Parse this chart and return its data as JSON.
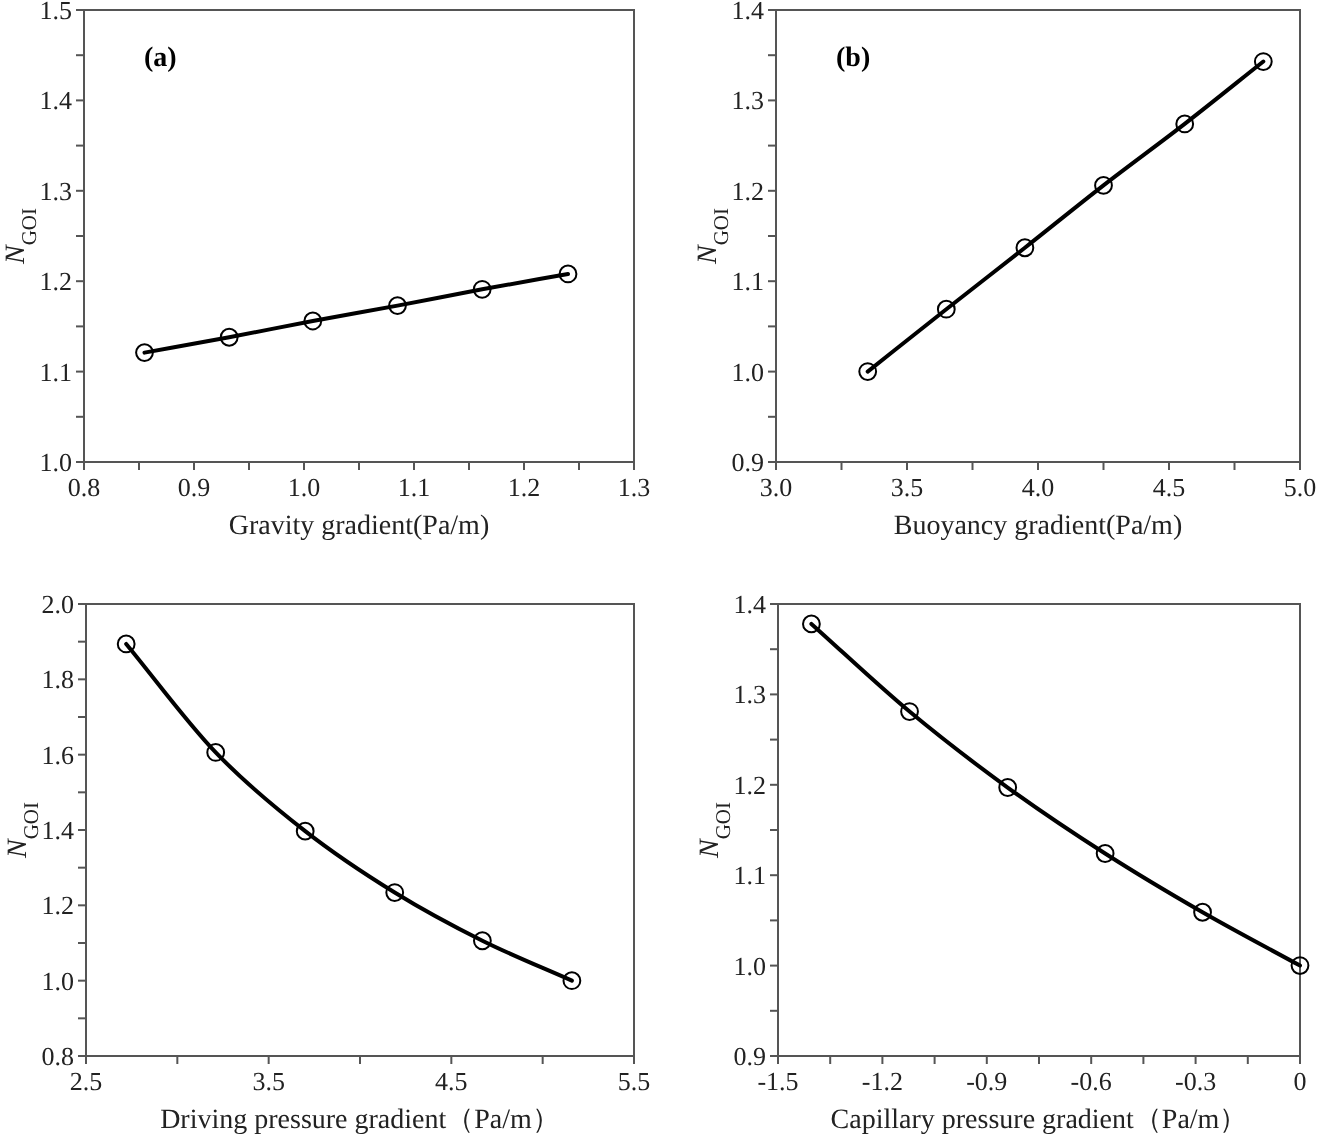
{
  "chart_data": [
    {
      "type": "line",
      "xlabel": "Gravity gradient(Pa/m)",
      "ylabel": "N$_{GOI}$",
      "annotations": [
        "(a)"
      ],
      "marker": "circle",
      "line_style": "solid",
      "grid": false,
      "xlim": [
        0.8,
        1.3
      ],
      "ylim": [
        1.0,
        1.5
      ],
      "xticks": [
        {
          "value": 0.8,
          "label": "0.8"
        },
        {
          "value": 0.85,
          "label": null
        },
        {
          "value": 0.9,
          "label": "0.9"
        },
        {
          "value": 0.95,
          "label": null
        },
        {
          "value": 1.0,
          "label": "1.0"
        },
        {
          "value": 1.05,
          "label": null
        },
        {
          "value": 1.1,
          "label": "1.1"
        },
        {
          "value": 1.15,
          "label": null
        },
        {
          "value": 1.2,
          "label": "1.2"
        },
        {
          "value": 1.25,
          "label": null
        },
        {
          "value": 1.3,
          "label": "1.3"
        }
      ],
      "yticks": [
        {
          "value": 1.0,
          "label": "1.0"
        },
        {
          "value": 1.05,
          "label": null
        },
        {
          "value": 1.1,
          "label": "1.1"
        },
        {
          "value": 1.15,
          "label": null
        },
        {
          "value": 1.2,
          "label": "1.2"
        },
        {
          "value": 1.25,
          "label": null
        },
        {
          "value": 1.3,
          "label": "1.3"
        },
        {
          "value": 1.35,
          "label": null
        },
        {
          "value": 1.4,
          "label": "1.4"
        },
        {
          "value": 1.45,
          "label": null
        },
        {
          "value": 1.5,
          "label": "1.5"
        }
      ],
      "series": [
        {
          "color": "#000000",
          "x": [
            0.855,
            0.932,
            1.008,
            1.085,
            1.162,
            1.24
          ],
          "values": [
            1.121,
            1.138,
            1.156,
            1.173,
            1.191,
            1.208
          ]
        }
      ]
    },
    {
      "type": "line",
      "xlabel": "Buoyancy gradient(Pa/m)",
      "ylabel": "N$_{GOI}$",
      "annotations": [
        "(b)"
      ],
      "marker": "circle",
      "line_style": "solid",
      "grid": false,
      "xlim": [
        3.0,
        5.0
      ],
      "ylim": [
        0.9,
        1.4
      ],
      "xticks": [
        {
          "value": 3.0,
          "label": "3.0"
        },
        {
          "value": 3.25,
          "label": null
        },
        {
          "value": 3.5,
          "label": "3.5"
        },
        {
          "value": 3.75,
          "label": null
        },
        {
          "value": 4.0,
          "label": "4.0"
        },
        {
          "value": 4.25,
          "label": null
        },
        {
          "value": 4.5,
          "label": "4.5"
        },
        {
          "value": 4.75,
          "label": null
        },
        {
          "value": 5.0,
          "label": "5.0"
        }
      ],
      "yticks": [
        {
          "value": 0.9,
          "label": "0.9"
        },
        {
          "value": 0.95,
          "label": null
        },
        {
          "value": 1.0,
          "label": "1.0"
        },
        {
          "value": 1.05,
          "label": null
        },
        {
          "value": 1.1,
          "label": "1.1"
        },
        {
          "value": 1.15,
          "label": null
        },
        {
          "value": 1.2,
          "label": "1.2"
        },
        {
          "value": 1.25,
          "label": null
        },
        {
          "value": 1.3,
          "label": "1.3"
        },
        {
          "value": 1.35,
          "label": null
        },
        {
          "value": 1.4,
          "label": "1.4"
        }
      ],
      "series": [
        {
          "color": "#000000",
          "x": [
            3.35,
            3.65,
            3.95,
            4.25,
            4.56,
            4.86
          ],
          "values": [
            1.0,
            1.069,
            1.137,
            1.206,
            1.274,
            1.343
          ]
        }
      ]
    },
    {
      "type": "line",
      "xlabel": "Driving pressure gradient（Pa/m）",
      "ylabel": "N$_{GOI}$",
      "marker": "circle",
      "line_style": "solid",
      "grid": false,
      "xlim": [
        2.5,
        5.5
      ],
      "ylim": [
        0.8,
        2.0
      ],
      "xticks": [
        {
          "value": 2.5,
          "label": "2.5"
        },
        {
          "value": 3.0,
          "label": null
        },
        {
          "value": 3.5,
          "label": "3.5"
        },
        {
          "value": 4.0,
          "label": null
        },
        {
          "value": 4.5,
          "label": "4.5"
        },
        {
          "value": 5.0,
          "label": null
        },
        {
          "value": 5.5,
          "label": "5.5"
        }
      ],
      "yticks": [
        {
          "value": 0.8,
          "label": "0.8"
        },
        {
          "value": 0.9,
          "label": null
        },
        {
          "value": 1.0,
          "label": "1.0"
        },
        {
          "value": 1.1,
          "label": null
        },
        {
          "value": 1.2,
          "label": "1.2"
        },
        {
          "value": 1.3,
          "label": null
        },
        {
          "value": 1.4,
          "label": "1.4"
        },
        {
          "value": 1.5,
          "label": null
        },
        {
          "value": 1.6,
          "label": "1.6"
        },
        {
          "value": 1.7,
          "label": null
        },
        {
          "value": 1.8,
          "label": "1.8"
        },
        {
          "value": 1.9,
          "label": null
        },
        {
          "value": 2.0,
          "label": "2.0"
        }
      ],
      "series": [
        {
          "color": "#000000",
          "x": [
            2.72,
            3.21,
            3.7,
            4.19,
            4.67,
            5.16
          ],
          "values": [
            1.894,
            1.606,
            1.397,
            1.234,
            1.106,
            1.0
          ]
        }
      ]
    },
    {
      "type": "line",
      "xlabel": "Capillary pressure gradient（Pa/m）",
      "ylabel": "N$_{GOI}$",
      "marker": "circle",
      "line_style": "solid",
      "grid": false,
      "xlim": [
        -1.5,
        0
      ],
      "ylim": [
        0.9,
        1.4
      ],
      "xticks": [
        {
          "value": -1.5,
          "label": "-1.5"
        },
        {
          "value": -1.35,
          "label": null
        },
        {
          "value": -1.2,
          "label": "-1.2"
        },
        {
          "value": -1.05,
          "label": null
        },
        {
          "value": -0.9,
          "label": "-0.9"
        },
        {
          "value": -0.75,
          "label": null
        },
        {
          "value": -0.6,
          "label": "-0.6"
        },
        {
          "value": -0.45,
          "label": null
        },
        {
          "value": -0.3,
          "label": "-0.3"
        },
        {
          "value": -0.15,
          "label": null
        },
        {
          "value": 0,
          "label": "0"
        }
      ],
      "yticks": [
        {
          "value": 0.9,
          "label": "0.9"
        },
        {
          "value": 0.95,
          "label": null
        },
        {
          "value": 1.0,
          "label": "1.0"
        },
        {
          "value": 1.05,
          "label": null
        },
        {
          "value": 1.1,
          "label": "1.1"
        },
        {
          "value": 1.15,
          "label": null
        },
        {
          "value": 1.2,
          "label": "1.2"
        },
        {
          "value": 1.25,
          "label": null
        },
        {
          "value": 1.3,
          "label": "1.3"
        },
        {
          "value": 1.35,
          "label": null
        },
        {
          "value": 1.4,
          "label": "1.4"
        }
      ],
      "series": [
        {
          "color": "#000000",
          "x": [
            -1.404,
            -1.122,
            -0.84,
            -0.56,
            -0.28,
            0
          ],
          "values": [
            1.378,
            1.281,
            1.197,
            1.124,
            1.059,
            1.0
          ]
        }
      ]
    }
  ]
}
